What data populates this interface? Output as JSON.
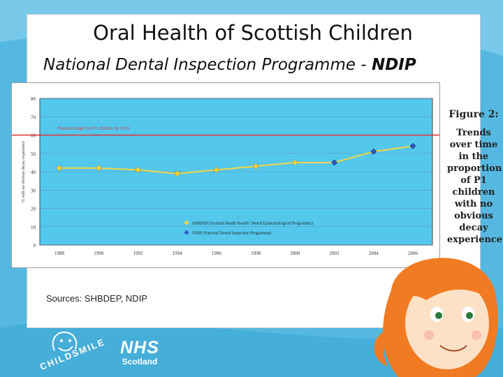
{
  "slide": {
    "title": "Oral Health of Scottish Children",
    "subtitle_main": "National Dental Inspection Programme - ",
    "subtitle_bold": "NDIP",
    "sources": "Sources: SHBDEP, NDIP"
  },
  "caption": {
    "figure": "Figure 2:",
    "text": "Trends over time in the proportion of P1 children with no obvious decay experience"
  },
  "logos": {
    "nhs": "NHS",
    "nhs_sub": "Scotland",
    "childsmile": "CHILDSMILE"
  },
  "colors": {
    "plot_bg": "#53c8ec",
    "target_line": "#e03030",
    "shbdep": "#f5d442",
    "ndip": "#2e55c8",
    "series_line": "#f5d442"
  },
  "chart_data": {
    "type": "line",
    "ylabel": "% with no obvious decay experience",
    "ylim": [
      0,
      80
    ],
    "yticks": [
      "0",
      "10",
      "20",
      "30",
      "40",
      "50",
      "60",
      "70",
      "80"
    ],
    "categories": [
      "1988",
      "1990",
      "1992",
      "1994",
      "1996",
      "1998",
      "2000",
      "2003",
      "2004",
      "2006"
    ],
    "target": {
      "label": "National target for P1 children by 2010",
      "value": 60
    },
    "series": [
      {
        "name": "SHBDEP (Scottish Health Boards' Dental Epidemiological Programme)",
        "points": [
          [
            0,
            42
          ],
          [
            1,
            42
          ],
          [
            2,
            41
          ],
          [
            3,
            39
          ],
          [
            4,
            41
          ],
          [
            5,
            43
          ],
          [
            6,
            45
          ]
        ]
      },
      {
        "name": "NDIP (National Dental Inspection Programme)",
        "points": [
          [
            7,
            45
          ],
          [
            8,
            51
          ],
          [
            9,
            54
          ]
        ]
      }
    ],
    "connector_points": [
      [
        6,
        45
      ],
      [
        7,
        45
      ],
      [
        8,
        51
      ],
      [
        9,
        54
      ]
    ],
    "grid": "horizontal",
    "legend_position": "bottom-center"
  }
}
